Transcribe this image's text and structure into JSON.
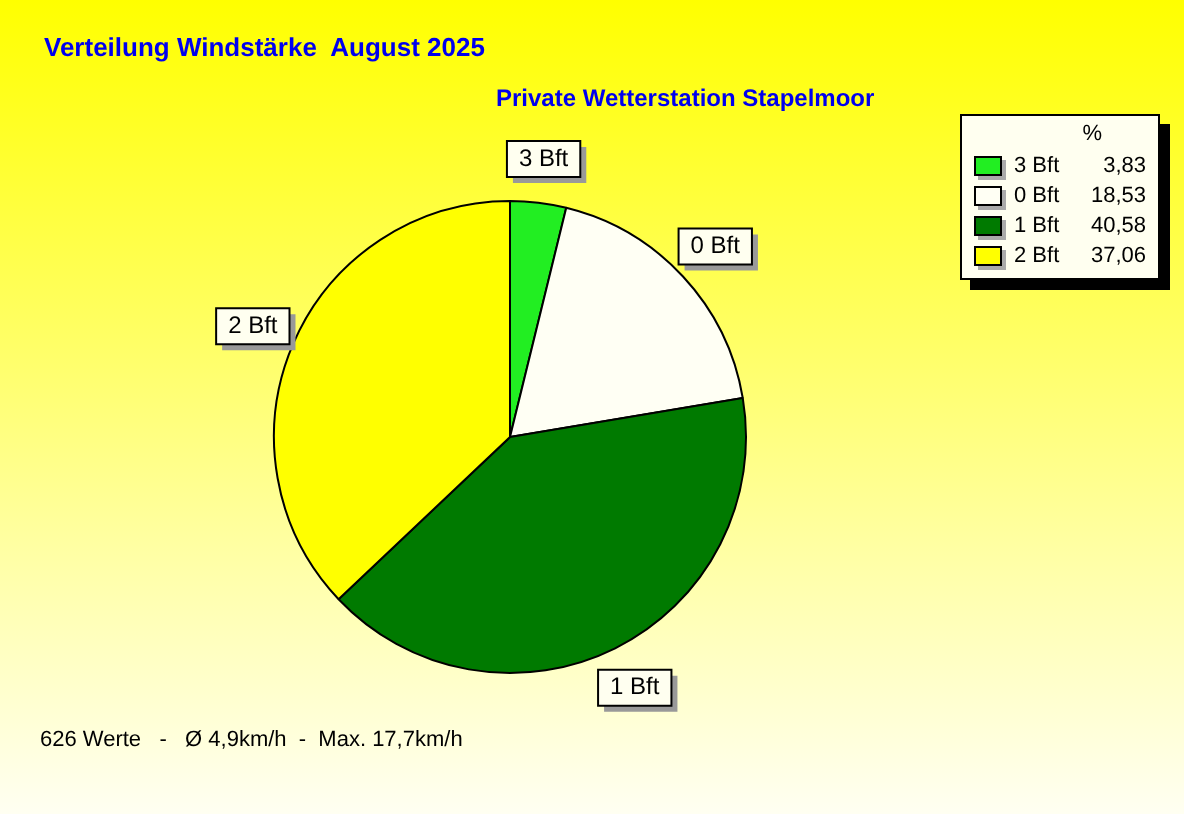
{
  "chart_data": {
    "type": "pie",
    "title": "Verteilung Windstärke  August 2025",
    "subtitle": "Private Wetterstation Stapelmoor",
    "categories": [
      "3 Bft",
      "0 Bft",
      "1 Bft",
      "2 Bft"
    ],
    "values": [
      3.83,
      18.53,
      40.58,
      37.06
    ],
    "value_labels": [
      "3,83",
      "18,53",
      "40,58",
      "37,06"
    ],
    "colors": [
      "#22ee22",
      "#fffff4",
      "#007a00",
      "#ffff00"
    ],
    "legend": "top right",
    "legend_title": "%",
    "annotations": [
      "626 Werte   -   Ø 4,9km/h  -  Max. 17,7km/h"
    ]
  }
}
